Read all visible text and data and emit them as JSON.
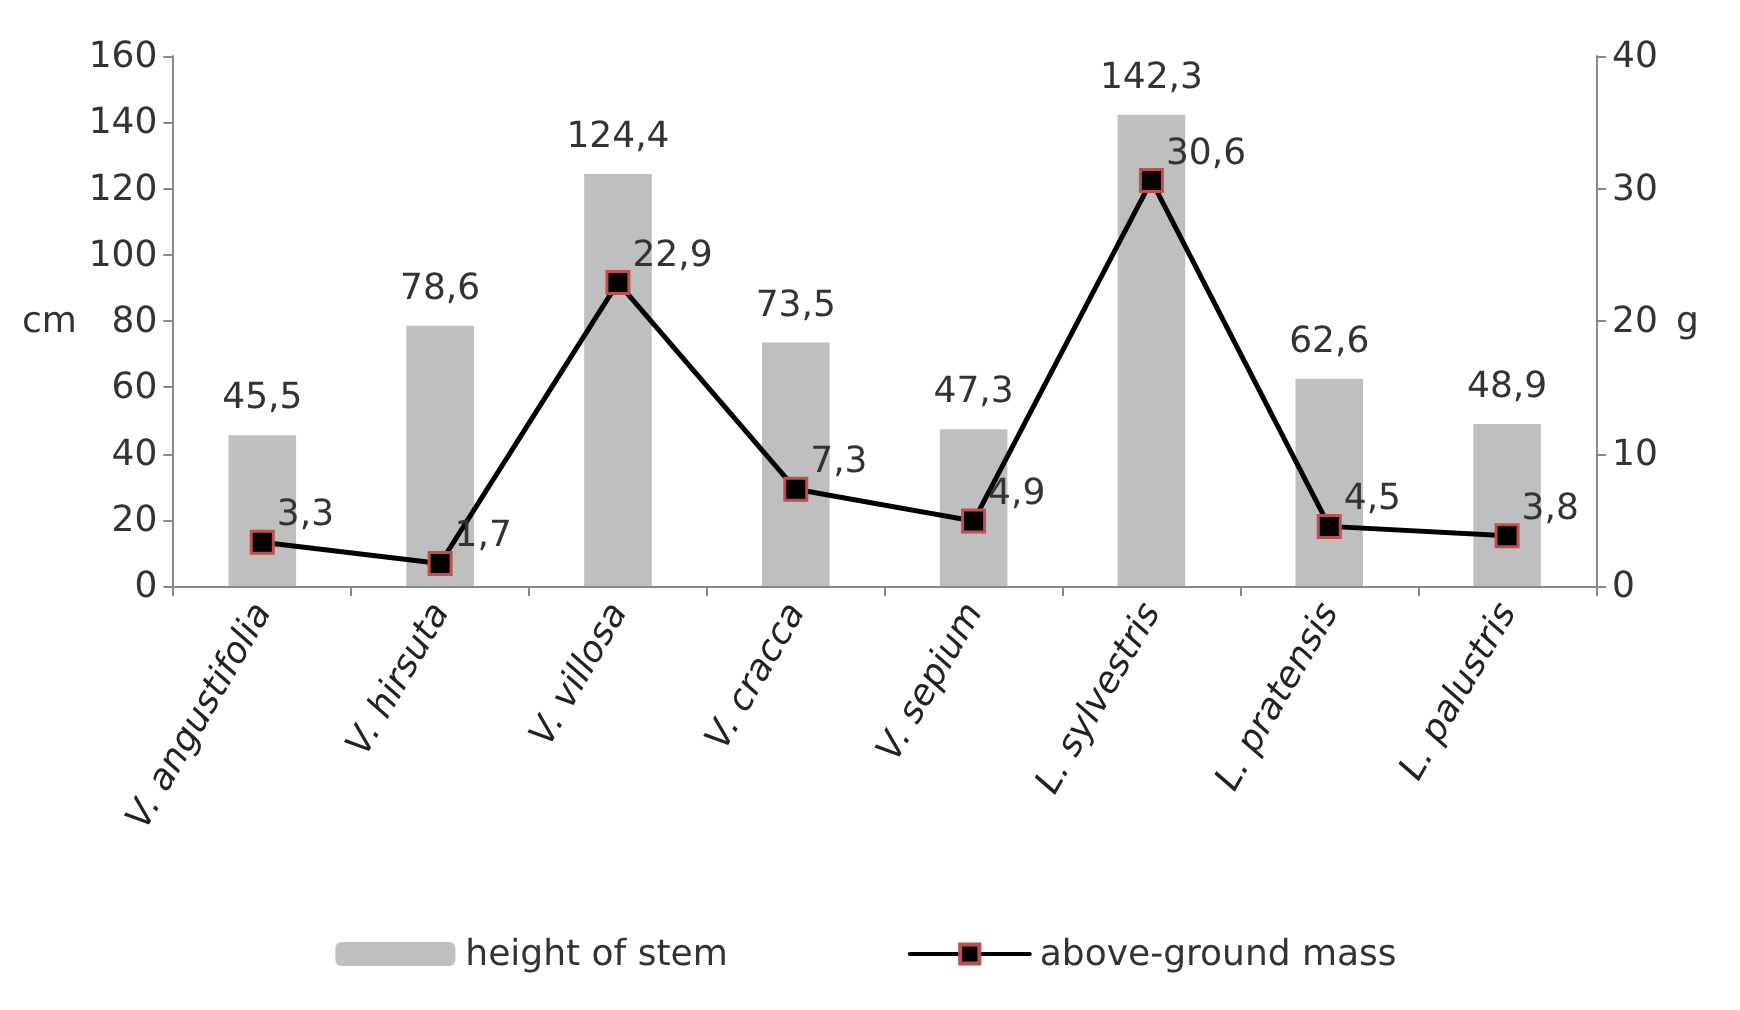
{
  "chart_data": {
    "type": "bar",
    "ylabel": "cm",
    "y2label": "g",
    "categories": [
      "V. angustifolia",
      "V. hirsuta",
      "V. villosa",
      "V. cracca",
      "V. sepium",
      "L. sylvestris",
      "L. pratensis",
      "L. palustris"
    ],
    "series": [
      {
        "name": "height of stem",
        "color": "#bfbfbf",
        "values": [
          45.5,
          78.6,
          124.4,
          73.5,
          47.3,
          142.3,
          62.6,
          48.9
        ],
        "value_labels": [
          "45,5",
          "78,6",
          "124,4",
          "73,5",
          "47,3",
          "142,3",
          "62,6",
          "48,9"
        ]
      },
      {
        "name": "above-ground mass",
        "type": "line",
        "axis": "y2",
        "color": "#000000",
        "marker": "square",
        "values": [
          3.3,
          1.7,
          22.9,
          7.3,
          4.9,
          30.6,
          4.5,
          3.8
        ],
        "value_labels": [
          "3,3",
          "1,7",
          "22,9",
          "7,3",
          "4,9",
          "30,6",
          "4,5",
          "3,8"
        ]
      }
    ],
    "ylim": [
      0,
      160
    ],
    "yticks": [
      0,
      20,
      40,
      60,
      80,
      100,
      120,
      140,
      160
    ],
    "y2lim": [
      0,
      40
    ],
    "y2ticks": [
      0,
      10,
      20,
      30,
      40
    ],
    "grid": false,
    "legend": "bottom"
  }
}
